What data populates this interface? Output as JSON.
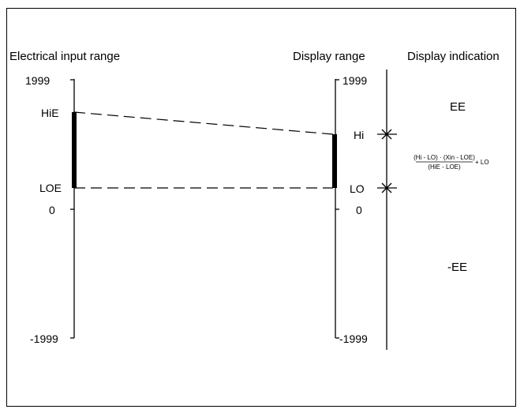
{
  "headers": {
    "input": "Electrical input range",
    "display": "Display range",
    "indication": "Display indication"
  },
  "input_scale": {
    "top": "1999",
    "hie": "HiE",
    "loe": "LOE",
    "zero": "0",
    "bottom": "-1999"
  },
  "display_scale": {
    "top": "1999",
    "hi": "Hi",
    "lo": "LO",
    "zero": "0",
    "bottom": "-1999"
  },
  "indication": {
    "over": "EE",
    "under": "-EE",
    "formula_numerator": "(Hi - LO) · (Xin - LOE)",
    "formula_denominator": "(HiE - LOE)",
    "formula_suffix": "+ LO"
  }
}
